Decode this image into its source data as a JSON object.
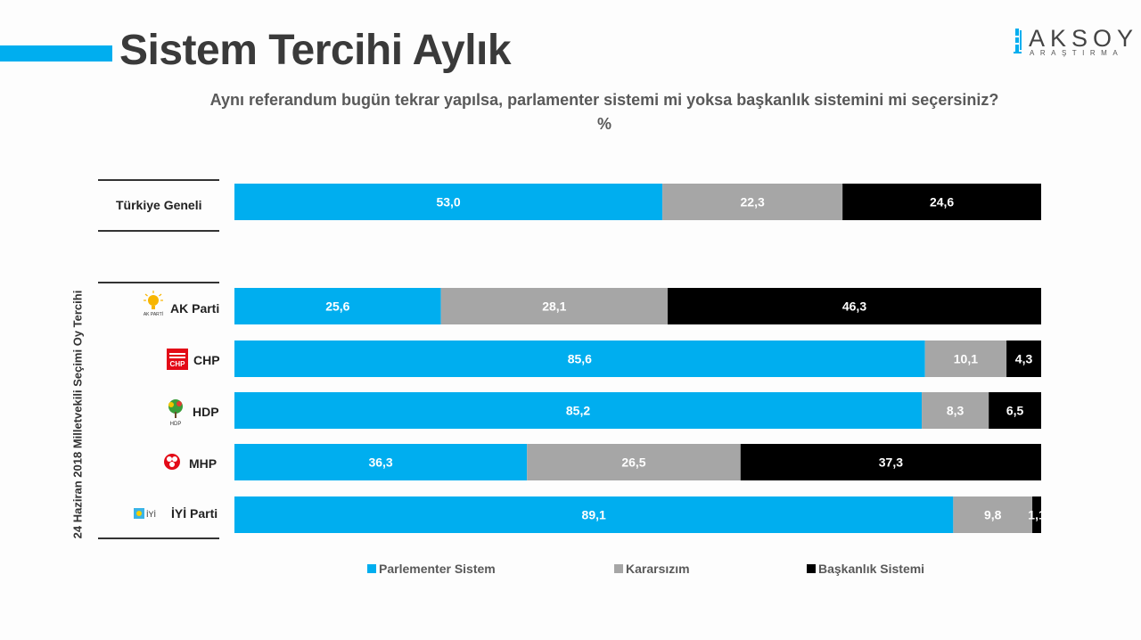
{
  "header": {
    "title": "Sistem Tercihi Aylık",
    "logo_word": "AKSOY",
    "logo_sub": "ARAŞTIRMA"
  },
  "colors": {
    "accent": "#00aeef",
    "parlementer": "#00aeef",
    "kararsiz": "#a6a6a6",
    "baskanlik": "#000000"
  },
  "chart_data": {
    "type": "bar",
    "orientation": "horizontal",
    "stacked": "100%",
    "title": "Aynı referandum bugün tekrar yapılsa, parlamenter sistemi mi yoksa başkanlık sistemini mi seçersiniz?",
    "unit": "%",
    "group_label": "24 Haziran 2018 Milletvekili Seçimi Oy Tercihi",
    "categories": [
      "Türkiye Geneli",
      "AK Parti",
      "CHP",
      "HDP",
      "MHP",
      "İYİ Parti"
    ],
    "series": [
      {
        "name": "Parlementer Sistem",
        "values": [
          53.0,
          25.6,
          85.6,
          85.2,
          36.3,
          89.1
        ]
      },
      {
        "name": "Kararsızım",
        "values": [
          22.3,
          28.1,
          10.1,
          8.3,
          26.5,
          9.8
        ]
      },
      {
        "name": "Başkanlık Sistemi",
        "values": [
          24.6,
          46.3,
          4.3,
          6.5,
          37.3,
          1.1
        ]
      }
    ],
    "labels": [
      [
        "53,0",
        "22,3",
        "24,6"
      ],
      [
        "25,6",
        "28,1",
        "46,3"
      ],
      [
        "85,6",
        "10,1",
        "4,3"
      ],
      [
        "85,2",
        "8,3",
        "6,5"
      ],
      [
        "36,3",
        "26,5",
        "37,3"
      ],
      [
        "89,1",
        "9,8",
        "1,1"
      ]
    ],
    "legend_position": "bottom",
    "icons": [
      "",
      "ak-parti-bulb-icon",
      "chp-six-arrows-icon",
      "hdp-tree-icon",
      "mhp-crescents-icon",
      "iyi-parti-sun-icon"
    ],
    "icon_texts": [
      "",
      "AK PARTİ",
      "CHP",
      "HDP",
      "",
      "İYİ"
    ]
  }
}
